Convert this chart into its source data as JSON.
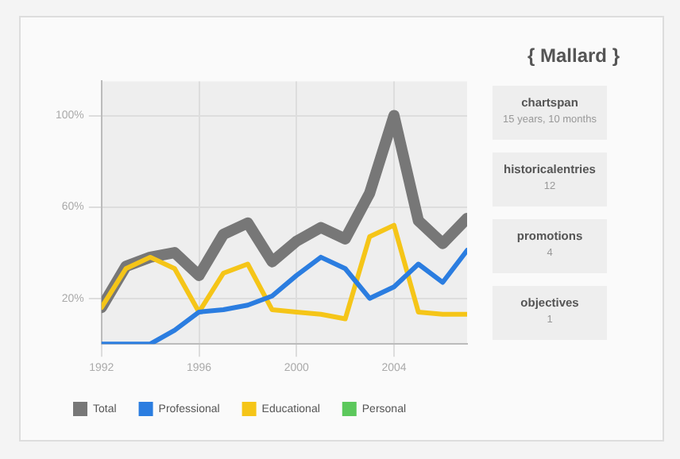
{
  "chart_data": {
    "type": "line",
    "title": "{ Mallard }",
    "x": [
      1992,
      1993,
      1994,
      1995,
      1996,
      1997,
      1998,
      1999,
      2000,
      2001,
      2002,
      2003,
      2004,
      2005,
      2006,
      2007
    ],
    "series": [
      {
        "name": "Total",
        "color": "#777777",
        "values": [
          16,
          34,
          38,
          40,
          30,
          48,
          53,
          36,
          45,
          51,
          46,
          66,
          100,
          54,
          44,
          55
        ]
      },
      {
        "name": "Professional",
        "color": "#2b7de0",
        "values": [
          0,
          0,
          0,
          6,
          14,
          15,
          17,
          21,
          30,
          38,
          33,
          20,
          25,
          35,
          27,
          41
        ]
      },
      {
        "name": "Educational",
        "color": "#f5c518",
        "values": [
          16,
          33,
          38,
          33,
          14,
          31,
          35,
          15,
          14,
          13,
          11,
          47,
          52,
          14,
          13,
          13
        ]
      },
      {
        "name": "Personal",
        "color": "#5cc85c",
        "values": [
          null,
          null,
          null,
          null,
          null,
          null,
          null,
          null,
          null,
          null,
          null,
          null,
          null,
          null,
          null,
          null
        ]
      }
    ],
    "xlim": [
      1992,
      2007
    ],
    "xticks": [
      1992,
      1996,
      2000,
      2004
    ],
    "ylim": [
      0,
      115
    ],
    "yticks": [
      {
        "value": 20,
        "label": "20%"
      },
      {
        "value": 60,
        "label": "60%"
      },
      {
        "value": 100,
        "label": "100%"
      }
    ],
    "grid": true,
    "legend": "bottom",
    "annotations": [
      "chartspan",
      "15 years, 10 months",
      "historicalentries",
      "12",
      "promotions",
      "4",
      "objectives",
      "1"
    ]
  }
}
